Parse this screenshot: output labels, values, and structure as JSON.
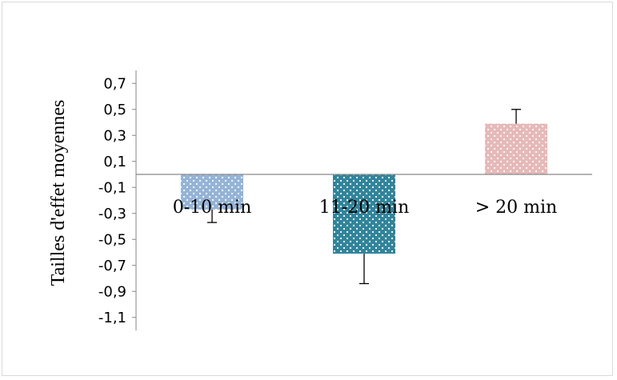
{
  "chart_data": {
    "type": "bar",
    "ylabel": "Tailles d'effet moyennes",
    "categories": [
      "0-10 min",
      "11-20 min",
      "> 20 min"
    ],
    "values": [
      -0.27,
      -0.61,
      0.39
    ],
    "error_bars": [
      0.1,
      0.23,
      0.11
    ],
    "yticks": [
      "0,7",
      "0,5",
      "0,3",
      "0,1",
      "-0,1",
      "-0,3",
      "-0,5",
      "-0,7",
      "-0,9",
      "-1,1"
    ],
    "ylim": [
      -1.2,
      0.8
    ],
    "colors": [
      "#95b3d7",
      "#31849b",
      "#e6b9b8"
    ],
    "pattern": "white dots",
    "legend": "none",
    "grid": false
  }
}
